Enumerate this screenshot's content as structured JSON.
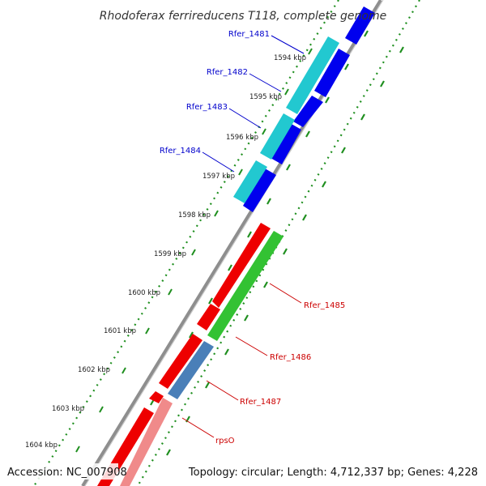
{
  "title": "Rhodoferax ferrireducens T118, complete genome",
  "accession": "Accession: NC_007908",
  "summary": "Topology: circular; Length: 4,712,337 bp; Genes: 4,228",
  "colors": {
    "cds_forward": "#0000ee",
    "cds_forward_alt": "#22c8d0",
    "cds_reverse": "#ee0000",
    "cds_reverse_light": "#f08a8a",
    "gene_green": "#33c233",
    "gene_steel": "#4a7fb8",
    "backbone": "#909090",
    "dotted_ring": "#1f8f1f",
    "label_forward": "#0000cc",
    "label_reverse": "#cc0000"
  },
  "ticks": [
    {
      "label": "1594 kbp"
    },
    {
      "label": "1595 kbp"
    },
    {
      "label": "1596 kbp"
    },
    {
      "label": "1597 kbp"
    },
    {
      "label": "1598 kbp"
    },
    {
      "label": "1599 kbp"
    },
    {
      "label": "1600 kbp"
    },
    {
      "label": "1601 kbp"
    },
    {
      "label": "1602 kbp"
    },
    {
      "label": "1603 kbp"
    },
    {
      "label": "1604 kbp"
    }
  ],
  "gene_labels": [
    {
      "name": "Rfer_1481",
      "strand": "forward"
    },
    {
      "name": "Rfer_1482",
      "strand": "forward"
    },
    {
      "name": "Rfer_1483",
      "strand": "forward"
    },
    {
      "name": "Rfer_1484",
      "strand": "forward"
    },
    {
      "name": "Rfer_1485",
      "strand": "reverse"
    },
    {
      "name": "Rfer_1486",
      "strand": "reverse"
    },
    {
      "name": "Rfer_1487",
      "strand": "reverse"
    },
    {
      "name": "rpsO",
      "strand": "reverse"
    }
  ]
}
